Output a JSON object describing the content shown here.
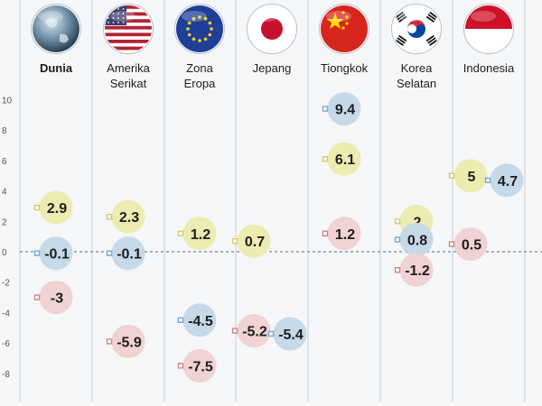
{
  "chart_data": {
    "type": "scatter",
    "y_ticks": [
      10,
      8,
      6,
      4,
      2,
      0,
      -2,
      -4,
      -6,
      -8
    ],
    "ylim": [
      -8.9,
      10.4
    ],
    "grid": false,
    "categories": [
      {
        "lines": [
          "Dunia"
        ],
        "bold": true,
        "flag": "globe-icon"
      },
      {
        "lines": [
          "Amerika",
          "Serikat"
        ],
        "bold": false,
        "flag": "flag-usa-icon"
      },
      {
        "lines": [
          "Zona",
          "Eropa"
        ],
        "bold": false,
        "flag": "flag-eu-icon"
      },
      {
        "lines": [
          "Jepang"
        ],
        "bold": false,
        "flag": "flag-japan-icon"
      },
      {
        "lines": [
          "Tiongkok"
        ],
        "bold": false,
        "flag": "flag-china-icon"
      },
      {
        "lines": [
          "Korea",
          "Selatan"
        ],
        "bold": false,
        "flag": "flag-south-korea-icon"
      },
      {
        "lines": [
          "Indonesia"
        ],
        "bold": false,
        "flag": "flag-indonesia-icon"
      }
    ],
    "points": [
      {
        "category": 0,
        "value": 2.9,
        "label": "2.9",
        "color": "yellow",
        "side": "left"
      },
      {
        "category": 0,
        "value": -0.1,
        "label": "-0.1",
        "color": "blue",
        "side": "left"
      },
      {
        "category": 0,
        "value": -3,
        "label": "-3",
        "color": "red",
        "side": "left"
      },
      {
        "category": 1,
        "value": 2.3,
        "label": "2.3",
        "color": "yellow",
        "side": "left"
      },
      {
        "category": 1,
        "value": -0.1,
        "label": "-0.1",
        "color": "blue",
        "side": "left"
      },
      {
        "category": 1,
        "value": -5.9,
        "label": "-5.9",
        "color": "red",
        "side": "left"
      },
      {
        "category": 2,
        "value": 1.2,
        "label": "1.2",
        "color": "yellow",
        "side": "left"
      },
      {
        "category": 2,
        "value": -4.5,
        "label": "-4.5",
        "color": "blue",
        "side": "left"
      },
      {
        "category": 2,
        "value": -7.5,
        "label": "-7.5",
        "color": "red",
        "side": "left"
      },
      {
        "category": 3,
        "value": 0.7,
        "label": "0.7",
        "color": "yellow",
        "side": "left"
      },
      {
        "category": 3,
        "value": -5.2,
        "label": "-5.2",
        "color": "red",
        "side": "left"
      },
      {
        "category": 3,
        "value": -5.4,
        "label": "-5.4",
        "color": "blue",
        "side": "right"
      },
      {
        "category": 4,
        "value": 9.4,
        "label": "9.4",
        "color": "blue",
        "side": "left"
      },
      {
        "category": 4,
        "value": 6.1,
        "label": "6.1",
        "color": "yellow",
        "side": "left"
      },
      {
        "category": 4,
        "value": 1.2,
        "label": "1.2",
        "color": "red",
        "side": "left"
      },
      {
        "category": 5,
        "value": 2,
        "label": "2",
        "color": "yellow",
        "side": "left"
      },
      {
        "category": 5,
        "value": 0.8,
        "label": "0.8",
        "color": "blue",
        "side": "left"
      },
      {
        "category": 5,
        "value": -1.2,
        "label": "-1.2",
        "color": "red",
        "side": "left"
      },
      {
        "category": 6,
        "value": 5,
        "label": "5",
        "color": "yellow",
        "side": "left"
      },
      {
        "category": 6,
        "value": 4.7,
        "label": "4.7",
        "color": "blue",
        "side": "right"
      },
      {
        "category": 6,
        "value": 0.5,
        "label": "0.5",
        "color": "red",
        "side": "left"
      }
    ],
    "colors": {
      "yellow": "#ecebb0",
      "blue": "#c5d9e8",
      "red": "#f0d2d2",
      "marker_yellow": "#d9c96a",
      "marker_blue": "#7aa6c8",
      "marker_red": "#c98888",
      "zero_line": "#7f9cad",
      "column_line": "#c9cdd2",
      "text": "#1d1d1d",
      "axis_text": "#555555"
    }
  }
}
